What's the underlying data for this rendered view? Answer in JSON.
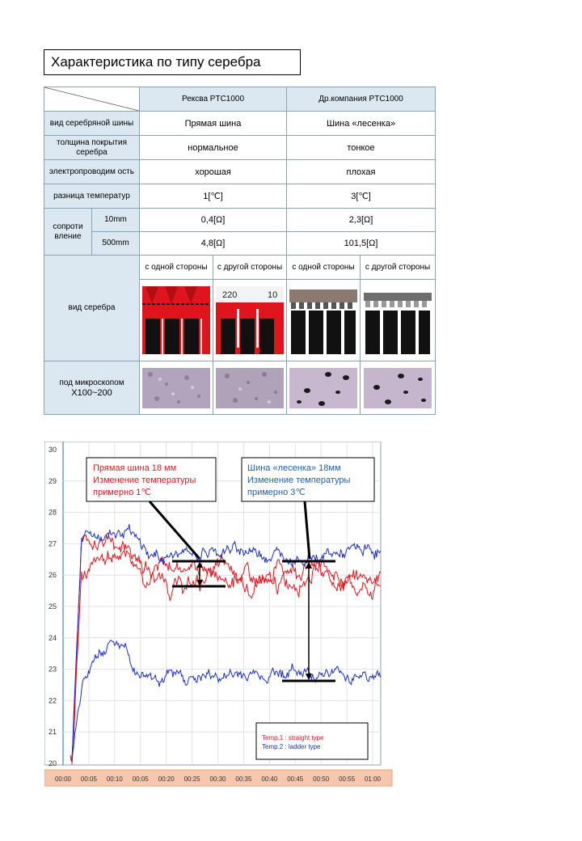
{
  "title": "Характеристика по типу серебра",
  "table": {
    "col_headers": [
      "Рексва  PTC1000",
      "Др.компания PTC1000"
    ],
    "rows": [
      {
        "label": "вид серебряной шины",
        "a": "Прямая шина",
        "b": "Шина «лесенка»"
      },
      {
        "label": "толщина покрытия серебра",
        "a": "нормальное",
        "b": "тонкое"
      },
      {
        "label": "электропроводим ость",
        "a": "хорошая",
        "b": "плохая"
      },
      {
        "label": "разница температур",
        "a": "1[℃]",
        "b": "3[℃]"
      }
    ],
    "resistance": {
      "label": "сопроти вление",
      "rows": [
        {
          "size": "10mm",
          "a": "0,4[Ω]",
          "b": "2,3[Ω]"
        },
        {
          "size": "500mm",
          "a": "4,8[Ω]",
          "b": "101,5[Ω]"
        }
      ]
    },
    "view_label": "вид серебра",
    "side_headers": [
      "с одной стороны",
      "с другой стороны",
      "с одной стороны",
      "с другой стороны"
    ],
    "photo_text": [
      "220",
      "10"
    ],
    "micro_label": "под микроскопом",
    "micro_zoom": "X100~200"
  },
  "chart_data": {
    "type": "line",
    "y_ticks": [
      "30",
      "29",
      "28",
      "27",
      "26",
      "25",
      "24",
      "23",
      "22",
      "21",
      "20"
    ],
    "ylim": [
      20,
      30
    ],
    "x_ticks": [
      "00:00",
      "00:05",
      "00:10",
      "00:05",
      "00:20",
      "00:25",
      "00:30",
      "00:35",
      "00:40",
      "00:45",
      "00:50",
      "00:55",
      "01:00"
    ],
    "series": [
      {
        "name": "Temp.1 : straight type",
        "color": "#e8141c"
      },
      {
        "name": "Temp.2 : ladder type",
        "color": "#1a2fc8"
      }
    ],
    "annotation_red": [
      "Прямая шина 18 мм",
      "Изменение температуры",
      "примерно 1℃"
    ],
    "annotation_blue": [
      "Шина «лесенка» 18мм",
      "Изменение температуры",
      "примерно 3℃"
    ],
    "colors": {
      "red_text": "#e8141c",
      "blue_text": "#1f5fa8"
    }
  }
}
